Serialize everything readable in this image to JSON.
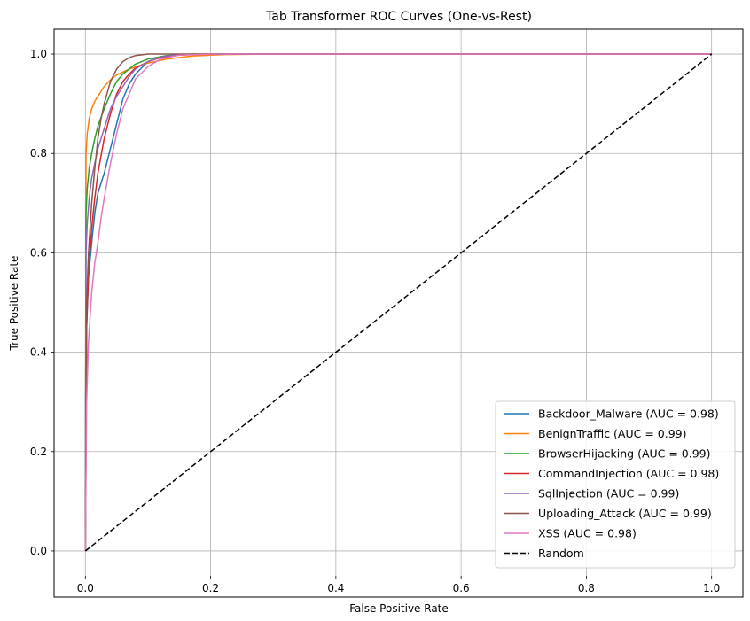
{
  "chart_data": {
    "type": "line",
    "title": "Tab Transformer ROC Curves (One-vs-Rest)",
    "xlabel": "False Positive Rate",
    "ylabel": "True Positive Rate",
    "xlim": [
      -0.05,
      1.05
    ],
    "ylim": [
      -0.05,
      1.05
    ],
    "xticks": [
      0.0,
      0.2,
      0.4,
      0.6,
      0.8,
      1.0
    ],
    "yticks": [
      0.0,
      0.2,
      0.4,
      0.6,
      0.8,
      1.0
    ],
    "xtick_labels": [
      "0.0",
      "0.2",
      "0.4",
      "0.6",
      "0.8",
      "1.0"
    ],
    "ytick_labels": [
      "0.0",
      "0.2",
      "0.4",
      "0.6",
      "0.8",
      "1.0"
    ],
    "grid": true,
    "legend_position": "lower-right",
    "series": [
      {
        "name": "Backdoor_Malware (AUC = 0.98)",
        "color": "#1f77b4",
        "x": [
          0,
          0.002,
          0.005,
          0.01,
          0.015,
          0.02,
          0.03,
          0.04,
          0.05,
          0.06,
          0.07,
          0.08,
          0.1,
          0.12,
          0.15,
          0.2,
          0.3,
          1.0
        ],
        "y": [
          0,
          0.45,
          0.55,
          0.62,
          0.68,
          0.72,
          0.76,
          0.81,
          0.86,
          0.91,
          0.94,
          0.96,
          0.985,
          0.995,
          0.999,
          1.0,
          1.0,
          1.0
        ]
      },
      {
        "name": "BenignTraffic (AUC = 0.99)",
        "color": "#ff7f0e",
        "x": [
          0,
          0.001,
          0.003,
          0.006,
          0.01,
          0.015,
          0.02,
          0.03,
          0.04,
          0.05,
          0.07,
          0.1,
          0.13,
          0.17,
          0.22,
          0.3,
          1.0
        ],
        "y": [
          0,
          0.8,
          0.84,
          0.87,
          0.89,
          0.905,
          0.915,
          0.935,
          0.948,
          0.958,
          0.97,
          0.982,
          0.99,
          0.996,
          0.999,
          1.0,
          1.0
        ]
      },
      {
        "name": "BrowserHijacking (AUC = 0.99)",
        "color": "#2ca02c",
        "x": [
          0,
          0.001,
          0.003,
          0.006,
          0.01,
          0.015,
          0.02,
          0.03,
          0.04,
          0.05,
          0.06,
          0.08,
          0.1,
          0.13,
          0.17,
          0.2,
          1.0
        ],
        "y": [
          0,
          0.68,
          0.73,
          0.77,
          0.8,
          0.83,
          0.855,
          0.89,
          0.92,
          0.945,
          0.96,
          0.98,
          0.99,
          0.997,
          1.0,
          1.0,
          1.0
        ]
      },
      {
        "name": "CommandInjection (AUC = 0.98)",
        "color": "#d62728",
        "x": [
          0,
          0.002,
          0.005,
          0.01,
          0.015,
          0.02,
          0.03,
          0.04,
          0.05,
          0.06,
          0.07,
          0.08,
          0.1,
          0.12,
          0.15,
          0.2,
          1.0
        ],
        "y": [
          0,
          0.45,
          0.56,
          0.65,
          0.71,
          0.76,
          0.83,
          0.88,
          0.92,
          0.945,
          0.96,
          0.972,
          0.985,
          0.993,
          0.998,
          1.0,
          1.0
        ]
      },
      {
        "name": "SqlInjection (AUC = 0.99)",
        "color": "#9467bd",
        "x": [
          0,
          0.001,
          0.003,
          0.006,
          0.01,
          0.015,
          0.02,
          0.03,
          0.04,
          0.05,
          0.06,
          0.07,
          0.08,
          0.1,
          0.12,
          0.15,
          0.2,
          1.0
        ],
        "y": [
          0,
          0.6,
          0.66,
          0.71,
          0.75,
          0.78,
          0.81,
          0.85,
          0.89,
          0.915,
          0.935,
          0.955,
          0.97,
          0.985,
          0.994,
          0.999,
          1.0,
          1.0
        ]
      },
      {
        "name": "Uploading_Attack (AUC = 0.99)",
        "color": "#8c564b",
        "x": [
          0,
          0.002,
          0.005,
          0.01,
          0.015,
          0.02,
          0.025,
          0.03,
          0.04,
          0.05,
          0.06,
          0.07,
          0.08,
          0.1,
          0.12,
          1.0
        ],
        "y": [
          0,
          0.5,
          0.6,
          0.7,
          0.77,
          0.83,
          0.87,
          0.9,
          0.945,
          0.97,
          0.985,
          0.993,
          0.997,
          1.0,
          1.0,
          1.0
        ]
      },
      {
        "name": "XSS (AUC = 0.98)",
        "color": "#e377c2",
        "x": [
          0,
          0.002,
          0.005,
          0.01,
          0.015,
          0.02,
          0.025,
          0.03,
          0.04,
          0.05,
          0.06,
          0.07,
          0.08,
          0.1,
          0.12,
          0.15,
          0.2,
          1.0
        ],
        "y": [
          0,
          0.3,
          0.42,
          0.52,
          0.58,
          0.62,
          0.67,
          0.71,
          0.78,
          0.84,
          0.89,
          0.92,
          0.95,
          0.975,
          0.99,
          0.998,
          1.0,
          1.0
        ]
      },
      {
        "name": "Random",
        "color": "#000000",
        "dashed": true,
        "x": [
          0,
          1
        ],
        "y": [
          0,
          1
        ]
      }
    ]
  }
}
